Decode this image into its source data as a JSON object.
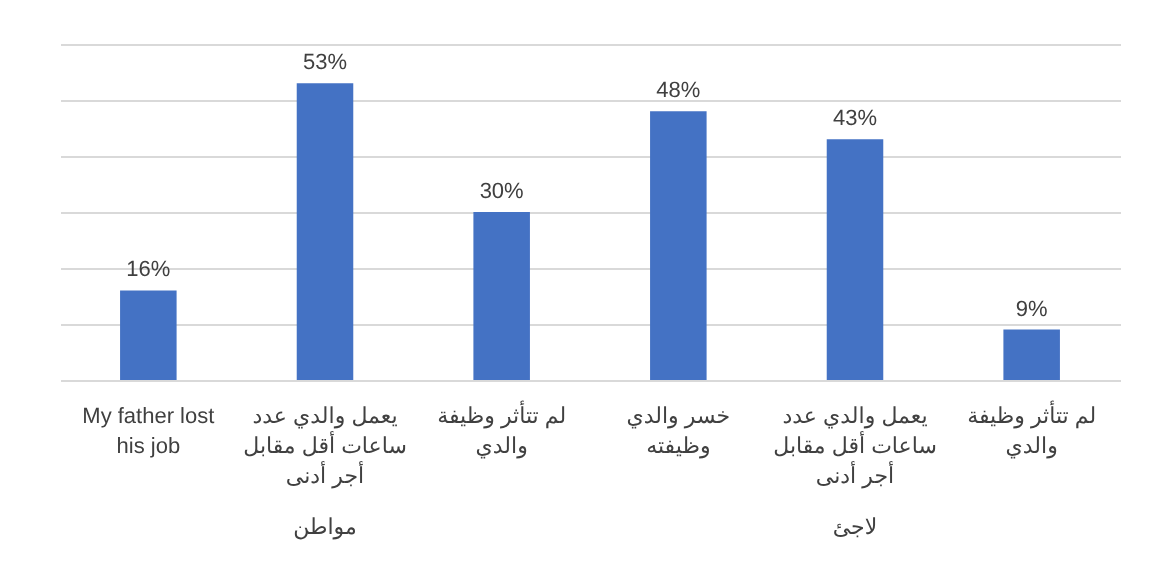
{
  "chart_data": {
    "type": "bar",
    "categories": [
      "My father lost his job",
      "يعمل والدي عدد ساعات أقل مقابل أجر أدنى",
      "لم تتأثر وظيفة والدي",
      "خسر والدي وظيفته",
      "يعمل والدي عدد ساعات أقل مقابل أجر أدنى",
      "لم تتأثر وظيفة والدي"
    ],
    "values": [
      16,
      53,
      30,
      48,
      43,
      9
    ],
    "value_labels": [
      "16%",
      "53%",
      "30%",
      "48%",
      "43%",
      "9%"
    ],
    "color": "#4472c4",
    "ylim": [
      0,
      60
    ],
    "yticks": [
      {
        "value": 0,
        "label": null
      },
      {
        "value": 10,
        "label": null
      },
      {
        "value": 20,
        "label": null
      },
      {
        "value": 30,
        "label": null
      },
      {
        "value": 40,
        "label": null
      },
      {
        "value": 50,
        "label": null
      },
      {
        "value": 60,
        "label": null
      }
    ],
    "grid": "y",
    "tick_labels": "x",
    "annotations": [
      "مواطن",
      "لاجئ"
    ]
  }
}
